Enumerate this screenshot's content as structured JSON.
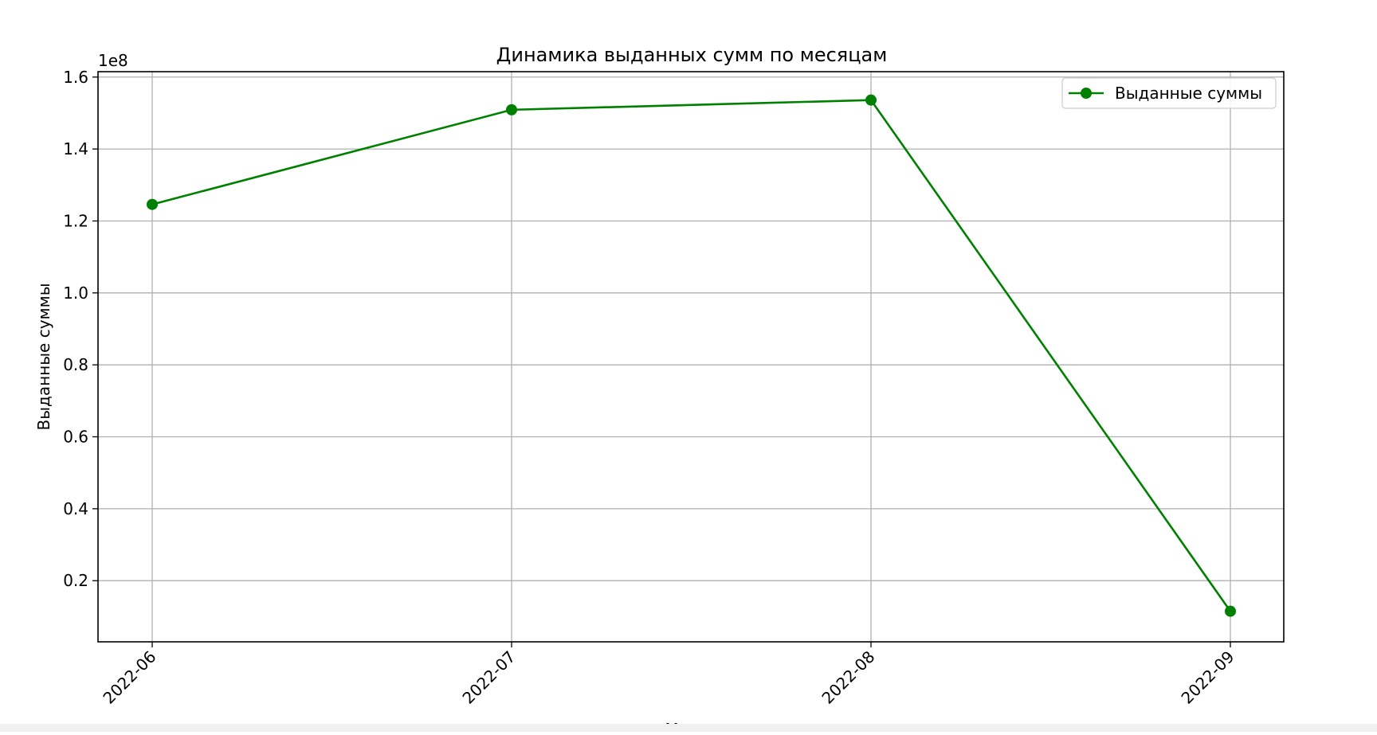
{
  "chart_data": {
    "type": "line",
    "title": "Динамика выданных сумм по месяцам",
    "xlabel": "М",
    "ylabel": "Выданные суммы",
    "offset_label": "1e8",
    "categories": [
      "2022-06",
      "2022-07",
      "2022-08",
      "2022-09"
    ],
    "series": [
      {
        "name": "Выданные суммы",
        "values": [
          124600000,
          150900000,
          153600000,
          11500000
        ],
        "color": "#008000",
        "marker": "circle"
      }
    ],
    "ylim": [
      3000000,
      161500000
    ],
    "yticks": [
      0.2,
      0.4,
      0.6,
      0.8,
      1.0,
      1.2,
      1.4,
      1.6
    ],
    "ytick_labels": [
      "0.2",
      "0.4",
      "0.6",
      "0.8",
      "1.0",
      "1.2",
      "1.4",
      "1.6"
    ],
    "ytick_scale": 100000000,
    "grid": true,
    "legend_position": "top-right",
    "colors": {
      "line": "#008000",
      "grid": "#b0b0b0",
      "axes": "#000000",
      "legend_border": "#cccccc"
    }
  }
}
